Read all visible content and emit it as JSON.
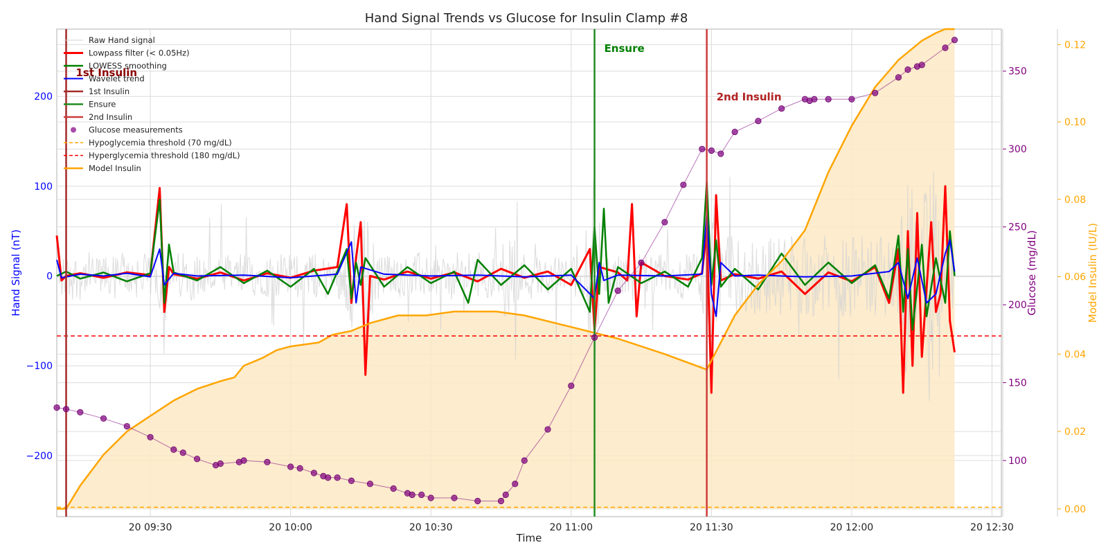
{
  "chart_data": {
    "type": "line",
    "title": "Hand Signal Trends vs Glucose for Insulin Clamp #8",
    "xlabel": "Time",
    "x_range": [
      "09:10",
      "12:32"
    ],
    "x_ticks": [
      "20 09:30",
      "20 10:00",
      "20 10:30",
      "20 11:00",
      "20 11:30",
      "20 12:00",
      "20 12:30"
    ],
    "axes": {
      "left": {
        "label": "Hand Signal (nT)",
        "ylim": [
          -268,
          275
        ],
        "ticks": [
          200,
          100,
          0,
          -100,
          -200
        ],
        "tick_labels": [
          "200",
          "100",
          "0",
          "−100",
          "−200"
        ],
        "color": "#0000ff"
      },
      "right1": {
        "label": "Glucose (mg/dL)",
        "ylim": [
          64,
          377
        ],
        "ticks": [
          350,
          300,
          250,
          200,
          150,
          100
        ],
        "color": "#800080"
      },
      "right2": {
        "label": "Model Insulin (IU/L)",
        "ylim": [
          -0.002,
          0.124
        ],
        "ticks": [
          0.0,
          0.02,
          0.04,
          0.06,
          0.08,
          0.1,
          0.12
        ],
        "tick_labels": [
          "0.00",
          "0.02",
          "0.04",
          "0.06",
          "0.08",
          "0.10",
          "0.12"
        ],
        "color": "#ffa500"
      }
    },
    "grid": true,
    "legend_placement": "top-left",
    "legend": [
      {
        "label": "Raw Hand signal",
        "kind": "line",
        "color": "#d3d3d3",
        "width": 1
      },
      {
        "label": "Lowpass filter (< 0.05Hz)",
        "kind": "line",
        "color": "#ff0000",
        "width": 3
      },
      {
        "label": "LOWESS smoothing",
        "kind": "line",
        "color": "#008000",
        "width": 2.5
      },
      {
        "label": "Wavelet trend",
        "kind": "line",
        "color": "#0000ff",
        "width": 2
      },
      {
        "label": "1st Insulin",
        "kind": "line",
        "color": "#a52a2a",
        "width": 2.5
      },
      {
        "label": "Ensure",
        "kind": "line",
        "color": "#228b22",
        "width": 2.5
      },
      {
        "label": "2nd Insulin",
        "kind": "line",
        "color": "#cd3b3b",
        "width": 2.5
      },
      {
        "label": "Glucose measurements",
        "kind": "dot",
        "color": "#800080"
      },
      {
        "label": "Hypoglycemia threshold (70 mg/dL)",
        "kind": "dash",
        "color": "#ffa500"
      },
      {
        "label": "Hyperglycemia threshold (180 mg/dL)",
        "kind": "dash",
        "color": "#ff0000"
      },
      {
        "label": "Model Insulin",
        "kind": "line",
        "color": "#ffa500",
        "width": 2.5
      }
    ],
    "events": [
      {
        "label": "1st Insulin",
        "time": "09:12",
        "color": "#a52a2a",
        "label_color": "#8b0000"
      },
      {
        "label": "Ensure",
        "time": "11:05",
        "color": "#228b22",
        "label_color": "#008000"
      },
      {
        "label": "2nd Insulin",
        "time": "11:29",
        "color": "#cd3b3b",
        "label_color": "#b22222"
      }
    ],
    "thresholds": [
      {
        "label": "Hypoglycemia threshold (70 mg/dL)",
        "value": 70,
        "axis": "right1",
        "color": "#ffa500"
      },
      {
        "label": "Hyperglycemia threshold (180 mg/dL)",
        "value": 180,
        "axis": "right1",
        "color": "#ff0000"
      }
    ],
    "series": [
      {
        "name": "Glucose measurements",
        "axis": "right1",
        "color": "#800080",
        "x": [
          "09:10",
          "09:12",
          "09:15",
          "09:20",
          "09:25",
          "09:30",
          "09:35",
          "09:37",
          "09:40",
          "09:44",
          "09:45",
          "09:49",
          "09:50",
          "09:55",
          "10:00",
          "10:02",
          "10:05",
          "10:07",
          "10:08",
          "10:10",
          "10:13",
          "10:17",
          "10:22",
          "10:25",
          "10:26",
          "10:28",
          "10:30",
          "10:35",
          "10:40",
          "10:45",
          "10:46",
          "10:48",
          "10:50",
          "10:55",
          "11:00",
          "11:05",
          "11:10",
          "11:15",
          "11:20",
          "11:24",
          "11:28",
          "11:30",
          "11:32",
          "11:35",
          "11:40",
          "11:45",
          "11:50",
          "11:51",
          "11:52",
          "11:55",
          "12:00",
          "12:05",
          "12:10",
          "12:12",
          "12:14",
          "12:15",
          "12:20",
          "12:22"
        ],
        "values": [
          134,
          133,
          131,
          127,
          122,
          115,
          107,
          105,
          101,
          97,
          98,
          99,
          100,
          99,
          96,
          95,
          92,
          90,
          89,
          89,
          87,
          85,
          82,
          79,
          78,
          78,
          76,
          76,
          74,
          74,
          78,
          85,
          100,
          120,
          148,
          179,
          209,
          227,
          253,
          277,
          300,
          299,
          297,
          311,
          318,
          326,
          332,
          331,
          332,
          332,
          332,
          336,
          346,
          351,
          353,
          354,
          365,
          370
        ]
      },
      {
        "name": "Model Insulin",
        "axis": "right2",
        "color": "#ffa500",
        "fill": "#fde9c4",
        "x": [
          "09:10",
          "09:12",
          "09:15",
          "09:20",
          "09:25",
          "09:30",
          "09:35",
          "09:40",
          "09:45",
          "09:48",
          "09:50",
          "09:54",
          "09:57",
          "10:00",
          "10:06",
          "10:09",
          "10:13",
          "10:17",
          "10:20",
          "10:23",
          "10:29",
          "10:35",
          "10:40",
          "10:44",
          "10:50",
          "11:00",
          "11:10",
          "11:20",
          "11:29",
          "11:35",
          "11:40",
          "11:45",
          "11:50",
          "11:55",
          "12:00",
          "12:05",
          "12:10",
          "12:15",
          "12:18",
          "12:20",
          "12:22"
        ],
        "values": [
          0.0,
          0.0,
          0.006,
          0.014,
          0.02,
          0.024,
          0.028,
          0.031,
          0.033,
          0.034,
          0.037,
          0.039,
          0.041,
          0.042,
          0.043,
          0.045,
          0.046,
          0.048,
          0.049,
          0.05,
          0.05,
          0.051,
          0.051,
          0.051,
          0.05,
          0.047,
          0.044,
          0.04,
          0.036,
          0.05,
          0.058,
          0.064,
          0.072,
          0.087,
          0.099,
          0.109,
          0.116,
          0.121,
          0.123,
          0.124,
          0.124
        ]
      },
      {
        "name": "Lowpass filter (< 0.05Hz)",
        "axis": "left",
        "color": "#ff0000",
        "x": [
          "09:10",
          "09:11",
          "09:12",
          "09:15",
          "09:20",
          "09:25",
          "09:30",
          "09:32",
          "09:33",
          "09:34",
          "09:35",
          "09:40",
          "09:45",
          "09:50",
          "09:55",
          "10:00",
          "10:05",
          "10:10",
          "10:12",
          "10:13",
          "10:14",
          "10:15",
          "10:16",
          "10:17",
          "10:20",
          "10:25",
          "10:30",
          "10:35",
          "10:40",
          "10:45",
          "10:50",
          "10:55",
          "11:00",
          "11:04",
          "11:05",
          "11:06",
          "11:10",
          "11:12",
          "11:13",
          "11:14",
          "11:15",
          "11:20",
          "11:25",
          "11:28",
          "11:29",
          "11:30",
          "11:31",
          "11:32",
          "11:35",
          "11:40",
          "11:45",
          "11:50",
          "11:55",
          "12:00",
          "12:05",
          "12:08",
          "12:10",
          "12:11",
          "12:12",
          "12:13",
          "12:14",
          "12:15",
          "12:17",
          "12:18",
          "12:19",
          "12:20",
          "12:21",
          "12:22"
        ],
        "values": [
          45,
          -5,
          0,
          3,
          -2,
          4,
          1,
          98,
          -40,
          10,
          2,
          -3,
          4,
          -5,
          3,
          -2,
          6,
          10,
          80,
          -30,
          20,
          60,
          -110,
          0,
          -4,
          5,
          -3,
          4,
          -6,
          8,
          -2,
          5,
          -10,
          30,
          -60,
          10,
          4,
          -5,
          80,
          -45,
          15,
          0,
          -4,
          3,
          50,
          -130,
          90,
          -5,
          2,
          -3,
          5,
          -20,
          4,
          -6,
          10,
          -30,
          30,
          -130,
          50,
          -100,
          70,
          -90,
          60,
          -40,
          -20,
          100,
          -50,
          -85
        ]
      },
      {
        "name": "LOWESS smoothing",
        "axis": "left",
        "color": "#008000",
        "x": [
          "09:10",
          "09:12",
          "09:15",
          "09:20",
          "09:25",
          "09:30",
          "09:32",
          "09:33",
          "09:34",
          "09:35",
          "09:40",
          "09:45",
          "09:50",
          "09:55",
          "10:00",
          "10:05",
          "10:08",
          "10:12",
          "10:13",
          "10:14",
          "10:15",
          "10:16",
          "10:20",
          "10:25",
          "10:30",
          "10:35",
          "10:38",
          "10:40",
          "10:45",
          "10:50",
          "10:55",
          "11:00",
          "11:04",
          "11:05",
          "11:06",
          "11:07",
          "11:08",
          "11:10",
          "11:15",
          "11:20",
          "11:25",
          "11:28",
          "11:29",
          "11:30",
          "11:31",
          "11:32",
          "11:35",
          "11:40",
          "11:45",
          "11:50",
          "11:55",
          "12:00",
          "12:05",
          "12:08",
          "12:10",
          "12:11",
          "12:12",
          "12:13",
          "12:15",
          "12:16",
          "12:18",
          "12:20",
          "12:21",
          "12:22"
        ],
        "values": [
          0,
          5,
          -3,
          4,
          -6,
          3,
          85,
          -30,
          35,
          4,
          -5,
          10,
          -8,
          6,
          -12,
          8,
          -20,
          30,
          -25,
          15,
          -10,
          20,
          -12,
          10,
          -8,
          5,
          -30,
          18,
          -10,
          12,
          -15,
          8,
          -40,
          55,
          -20,
          75,
          -30,
          10,
          -8,
          5,
          -12,
          20,
          105,
          -10,
          40,
          -12,
          8,
          -15,
          25,
          -10,
          15,
          -8,
          12,
          -25,
          45,
          -40,
          30,
          -60,
          35,
          -45,
          20,
          -30,
          50,
          0
        ]
      },
      {
        "name": "Wavelet trend",
        "axis": "left",
        "color": "#0000ff",
        "x": [
          "09:10",
          "09:11",
          "09:15",
          "09:20",
          "09:25",
          "09:30",
          "09:32",
          "09:33",
          "09:35",
          "09:40",
          "09:50",
          "10:00",
          "10:10",
          "10:13",
          "10:14",
          "10:15",
          "10:20",
          "10:30",
          "10:40",
          "10:50",
          "11:00",
          "11:05",
          "11:06",
          "11:07",
          "11:10",
          "11:20",
          "11:28",
          "11:29",
          "11:30",
          "11:31",
          "11:32",
          "11:35",
          "11:40",
          "11:50",
          "12:00",
          "12:08",
          "12:10",
          "12:12",
          "12:14",
          "12:16",
          "12:18",
          "12:20",
          "12:21",
          "12:22"
        ],
        "values": [
          18,
          -2,
          2,
          0,
          3,
          -1,
          30,
          -10,
          3,
          0,
          1,
          -2,
          2,
          38,
          -30,
          10,
          2,
          0,
          1,
          -1,
          1,
          -25,
          15,
          -5,
          1,
          0,
          2,
          70,
          -20,
          -45,
          15,
          0,
          1,
          -1,
          0,
          5,
          15,
          -25,
          20,
          -30,
          -20,
          25,
          40,
          5
        ]
      }
    ]
  }
}
